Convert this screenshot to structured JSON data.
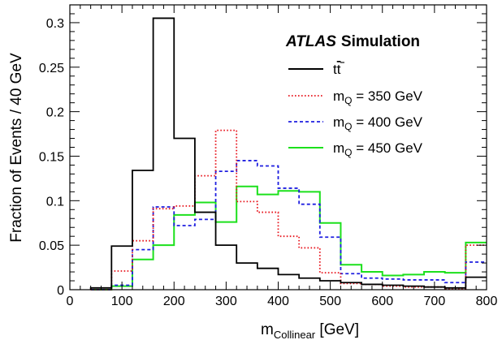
{
  "chart_data": {
    "type": "histogram",
    "title": "",
    "xlabel": "m",
    "xlabel_sub": "Collinear",
    "xlabel_unit": " [GeV]",
    "ylabel": "Fraction of Events / 40 GeV",
    "xlim": [
      0,
      800
    ],
    "ylim": [
      0,
      0.32
    ],
    "xticks": [
      0,
      100,
      200,
      300,
      400,
      500,
      600,
      700,
      800
    ],
    "yticks": [
      0,
      0.05,
      0.1,
      0.15,
      0.2,
      0.25,
      0.3
    ],
    "ytick_labels": [
      "0",
      "0.05",
      "0.1",
      "0.15",
      "0.2",
      "0.25",
      "0.3"
    ],
    "grid": false,
    "legend_position": "top-right",
    "annotation": {
      "atlas": "ATLAS",
      "simulation": "Simulation"
    },
    "bin_edges": [
      40,
      80,
      120,
      160,
      200,
      240,
      280,
      320,
      360,
      400,
      440,
      480,
      520,
      560,
      600,
      640,
      680,
      720,
      760,
      800
    ],
    "series": [
      {
        "name": "t̅t",
        "name_parts": [
          "t",
          "t",
          ""
        ],
        "color": "#000000",
        "style": "solid",
        "values": [
          0.002,
          0.049,
          0.134,
          0.305,
          0.17,
          0.087,
          0.05,
          0.03,
          0.024,
          0.017,
          0.013,
          0.01,
          0.008,
          0.006,
          0.005,
          0.004,
          0.003,
          0.002,
          0.014
        ]
      },
      {
        "name": "mQ = 350 GeV",
        "name_parts": [
          "m",
          "Q",
          " = 350 GeV"
        ],
        "color": "#e8141c",
        "style": "dotted",
        "values": [
          0.0,
          0.021,
          0.055,
          0.091,
          0.094,
          0.128,
          0.179,
          0.099,
          0.087,
          0.06,
          0.047,
          0.019,
          0.007,
          0.006,
          0.004,
          0.003,
          0.003,
          0.001,
          0.05
        ]
      },
      {
        "name": "mQ = 400 GeV",
        "name_parts": [
          "m",
          "Q",
          " = 400 GeV"
        ],
        "color": "#1f1fe0",
        "style": "dashed",
        "values": [
          0.0,
          0.005,
          0.045,
          0.093,
          0.072,
          0.079,
          0.133,
          0.145,
          0.139,
          0.114,
          0.096,
          0.059,
          0.018,
          0.013,
          0.012,
          0.011,
          0.011,
          0.008,
          0.031
        ]
      },
      {
        "name": "mQ = 450 GeV",
        "name_parts": [
          "m",
          "Q",
          " = 450 GeV"
        ],
        "color": "#1ce01c",
        "style": "solid",
        "values": [
          0.0,
          0.004,
          0.034,
          0.05,
          0.084,
          0.098,
          0.076,
          0.116,
          0.107,
          0.111,
          0.11,
          0.075,
          0.028,
          0.02,
          0.016,
          0.017,
          0.02,
          0.019,
          0.053
        ]
      }
    ]
  }
}
